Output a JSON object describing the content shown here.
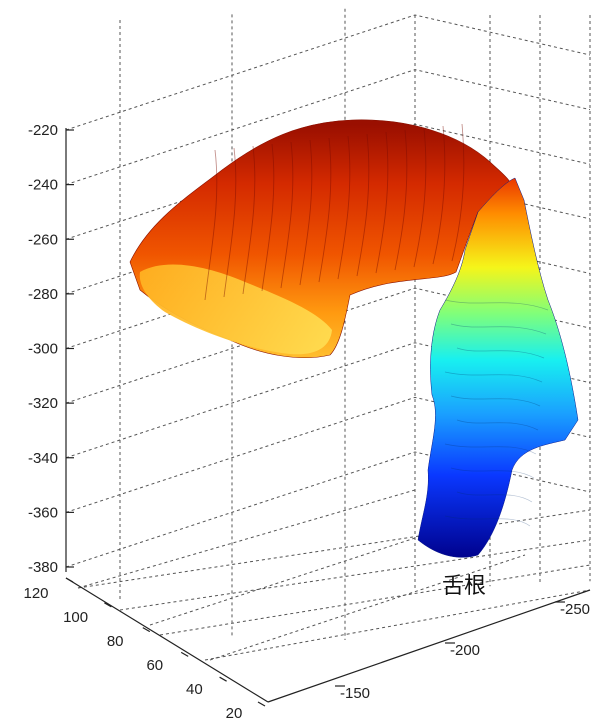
{
  "chart_data": {
    "type": "surface3d",
    "title": "",
    "xlabel": "",
    "ylabel": "",
    "zlabel": "",
    "grid": true,
    "colormap": "jet",
    "z_ticks": [
      "-220",
      "-240",
      "-260",
      "-280",
      "-300",
      "-320",
      "-340",
      "-360",
      "-380"
    ],
    "y_ticks": [
      "120",
      "100",
      "80",
      "60",
      "40",
      "20"
    ],
    "x_ticks": [
      "-250",
      "-200",
      "-150"
    ],
    "zlim": [
      -390,
      -215
    ],
    "annotations": [
      {
        "text": "舌根",
        "points_to": "base of the vertical part of the surface (lowest z, about -375)"
      }
    ],
    "surface": {
      "description": "Tongue-shaped 3D surface: an arched dome at the top (z about -225 to -300) curving down into a narrow vertical column (z about -260 to -375); colour follows z height (jet colormap).",
      "z_range": [
        -375,
        -225
      ]
    }
  }
}
